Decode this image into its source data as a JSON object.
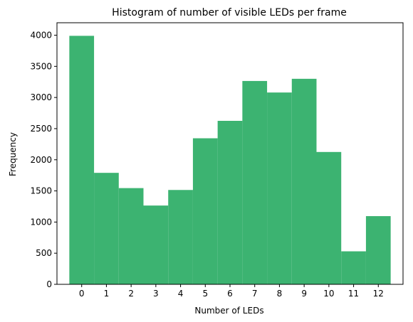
{
  "chart_data": {
    "type": "bar",
    "title": "Histogram of number of visible LEDs per frame",
    "xlabel": "Number of LEDs",
    "ylabel": "Frequency",
    "categories": [
      "0",
      "1",
      "2",
      "3",
      "4",
      "5",
      "6",
      "7",
      "8",
      "9",
      "10",
      "11",
      "12"
    ],
    "values": [
      3990,
      1790,
      1545,
      1265,
      1515,
      2345,
      2625,
      3265,
      3080,
      3300,
      2125,
      530,
      1095
    ],
    "ylim": [
      0,
      4200
    ],
    "yticks": [
      0,
      500,
      1000,
      1500,
      2000,
      2500,
      3000,
      3500,
      4000
    ],
    "bar_color": "#3cb371",
    "grid": false,
    "legend": false
  }
}
